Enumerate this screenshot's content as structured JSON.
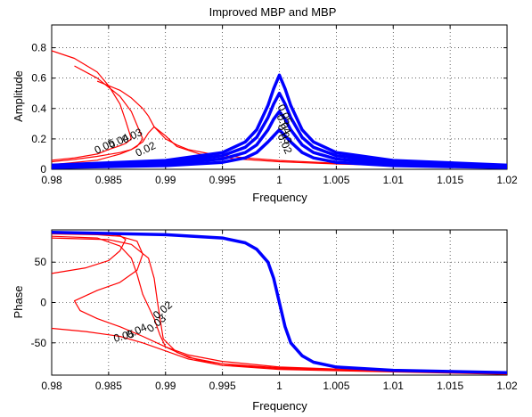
{
  "chart_data": [
    {
      "type": "line",
      "title": "Improved MBP and MBP",
      "xlabel": "Frequency",
      "ylabel": "Amplitude",
      "xlim": [
        0.98,
        1.02
      ],
      "ylim": [
        0,
        0.95
      ],
      "grid": true,
      "x_ticks": [
        "0.98",
        "0.985",
        "0.99",
        "0.995",
        "1",
        "1.005",
        "1.01",
        "1.015",
        "1.02"
      ],
      "y_ticks": [
        "0",
        "0.2",
        "0.4",
        "0.6",
        "0.8"
      ],
      "contour_labels": [
        "0.05",
        "0.04",
        "0.03",
        "0.02"
      ],
      "series": [
        {
          "group": "improved",
          "color": "#0000ff",
          "label": "0.05",
          "x": [
            0.98,
            0.99,
            0.995,
            0.997,
            0.998,
            0.999,
            0.9995,
            1.0,
            1.0005,
            1.001,
            1.002,
            1.003,
            1.005,
            1.01,
            1.02
          ],
          "y": [
            0.027,
            0.058,
            0.11,
            0.18,
            0.26,
            0.42,
            0.53,
            0.62,
            0.53,
            0.42,
            0.26,
            0.18,
            0.11,
            0.058,
            0.027
          ]
        },
        {
          "group": "improved",
          "color": "#0000ff",
          "label": "0.04",
          "x": [
            0.98,
            0.99,
            0.995,
            0.997,
            0.998,
            0.999,
            0.9995,
            1.0,
            1.0005,
            1.001,
            1.002,
            1.003,
            1.005,
            1.01,
            1.02
          ],
          "y": [
            0.022,
            0.047,
            0.09,
            0.145,
            0.21,
            0.34,
            0.43,
            0.5,
            0.43,
            0.34,
            0.21,
            0.145,
            0.09,
            0.047,
            0.022
          ]
        },
        {
          "group": "improved",
          "color": "#0000ff",
          "label": "0.03",
          "x": [
            0.98,
            0.99,
            0.995,
            0.997,
            0.998,
            0.999,
            0.9995,
            1.0,
            1.0005,
            1.001,
            1.002,
            1.003,
            1.005,
            1.01,
            1.02
          ],
          "y": [
            0.017,
            0.035,
            0.068,
            0.11,
            0.16,
            0.26,
            0.33,
            0.38,
            0.33,
            0.26,
            0.16,
            0.11,
            0.068,
            0.035,
            0.017
          ]
        },
        {
          "group": "improved",
          "color": "#0000ff",
          "label": "0.02",
          "x": [
            0.98,
            0.99,
            0.995,
            0.997,
            0.998,
            0.999,
            0.9995,
            1.0,
            1.0005,
            1.001,
            1.002,
            1.003,
            1.005,
            1.01,
            1.02
          ],
          "y": [
            0.011,
            0.024,
            0.046,
            0.075,
            0.11,
            0.18,
            0.22,
            0.26,
            0.22,
            0.18,
            0.11,
            0.075,
            0.046,
            0.024,
            0.011
          ]
        },
        {
          "group": "mbp",
          "color": "#ff0000",
          "label": "0.05",
          "x": [
            0.98,
            0.982,
            0.984,
            0.985,
            0.986,
            0.9865,
            0.987,
            0.9865,
            0.986,
            0.985,
            0.984,
            0.982,
            0.98
          ],
          "y": [
            0.78,
            0.73,
            0.64,
            0.55,
            0.43,
            0.32,
            0.2,
            0.17,
            0.155,
            0.13,
            0.1,
            0.075,
            0.06
          ]
        },
        {
          "group": "mbp",
          "color": "#ff0000",
          "label": "0.04",
          "x": [
            0.982,
            0.984,
            0.986,
            0.987,
            0.9875,
            0.988,
            0.9875,
            0.987,
            0.986,
            0.984,
            0.982,
            0.98
          ],
          "y": [
            0.68,
            0.6,
            0.48,
            0.38,
            0.29,
            0.2,
            0.15,
            0.13,
            0.11,
            0.085,
            0.065,
            0.05
          ]
        },
        {
          "group": "mbp",
          "color": "#ff0000",
          "label": "0.03",
          "x": [
            0.984,
            0.986,
            0.987,
            0.988,
            0.9885,
            0.989,
            0.99,
            0.991,
            0.992,
            0.994,
            0.997,
            1.0,
            1.005
          ],
          "y": [
            0.58,
            0.52,
            0.47,
            0.4,
            0.35,
            0.28,
            0.2,
            0.16,
            0.13,
            0.1,
            0.075,
            0.058,
            0.04
          ]
        },
        {
          "group": "mbp",
          "color": "#ff0000",
          "label": "0.02",
          "x": [
            0.98,
            0.984,
            0.986,
            0.987,
            0.988,
            0.9885,
            0.989,
            0.99,
            0.991,
            0.993,
            0.996,
            1.0,
            1.005,
            1.01,
            1.02
          ],
          "y": [
            0.03,
            0.06,
            0.1,
            0.13,
            0.18,
            0.24,
            0.28,
            0.22,
            0.15,
            0.1,
            0.07,
            0.05,
            0.035,
            0.025,
            0.015
          ]
        }
      ]
    },
    {
      "type": "line",
      "title": "",
      "xlabel": "Frequency",
      "ylabel": "Phase",
      "xlim": [
        0.98,
        1.02
      ],
      "ylim": [
        -90,
        90
      ],
      "grid": true,
      "x_ticks": [
        "0.98",
        "0.985",
        "0.99",
        "0.995",
        "1",
        "1.005",
        "1.01",
        "1.015",
        "1.02"
      ],
      "y_ticks": [
        "-50",
        "0",
        "50"
      ],
      "contour_labels": [
        "0.05",
        "0.04",
        "0.03",
        "0.02"
      ],
      "series": [
        {
          "group": "improved",
          "color": "#0000ff",
          "x": [
            0.98,
            0.99,
            0.995,
            0.997,
            0.998,
            0.999,
            0.9995,
            1.0,
            1.0005,
            1.001,
            1.002,
            1.003,
            1.005,
            1.01,
            1.02
          ],
          "y": [
            87,
            84,
            80,
            74,
            66,
            50,
            30,
            0,
            -30,
            -50,
            -66,
            -74,
            -80,
            -84,
            -87
          ]
        },
        {
          "group": "mbp",
          "color": "#ff0000",
          "label": "0.05",
          "x": [
            0.98,
            0.983,
            0.985,
            0.986,
            0.9865,
            0.986,
            0.985,
            0.983,
            0.98
          ],
          "y": [
            36,
            43,
            52,
            64,
            78,
            83,
            85,
            86,
            86
          ]
        },
        {
          "group": "mbp",
          "color": "#ff0000",
          "label": "0.04",
          "x": [
            0.98,
            0.984,
            0.986,
            0.9875,
            0.988,
            0.9875,
            0.986,
            0.984,
            0.982,
            0.9825,
            0.984,
            0.986,
            0.988,
            0.99,
            0.992,
            0.995,
            1.0,
            1.01,
            1.02
          ],
          "y": [
            85,
            84,
            82,
            76,
            60,
            40,
            25,
            15,
            2,
            -10,
            -20,
            -30,
            -42,
            -55,
            -65,
            -73,
            -80,
            -85,
            -88
          ]
        },
        {
          "group": "mbp",
          "color": "#ff0000",
          "label": "0.03",
          "x": [
            0.98,
            0.984,
            0.986,
            0.987,
            0.9875,
            0.988,
            0.989,
            0.9895,
            0.99,
            0.992,
            0.995,
            1.0,
            1.02
          ],
          "y": [
            82,
            80,
            70,
            55,
            35,
            10,
            -20,
            -40,
            -55,
            -68,
            -76,
            -81,
            -88
          ]
        },
        {
          "group": "mbp",
          "color": "#ff0000",
          "label": "0.02",
          "x": [
            0.98,
            0.985,
            0.987,
            0.9885,
            0.989,
            0.9893,
            0.9898,
            0.991,
            0.993,
            0.996,
            1.0,
            1.02
          ],
          "y": [
            80,
            78,
            72,
            55,
            30,
            0,
            -45,
            -62,
            -72,
            -78,
            -82,
            -88
          ]
        },
        {
          "group": "mbp",
          "color": "#ff0000",
          "label": "0.05",
          "x": [
            0.98,
            0.983,
            0.986,
            0.988,
            0.99,
            0.992,
            0.995,
            1.0,
            1.01,
            1.02
          ],
          "y": [
            -32,
            -36,
            -42,
            -50,
            -60,
            -70,
            -78,
            -83,
            -86,
            -89
          ]
        }
      ]
    }
  ]
}
